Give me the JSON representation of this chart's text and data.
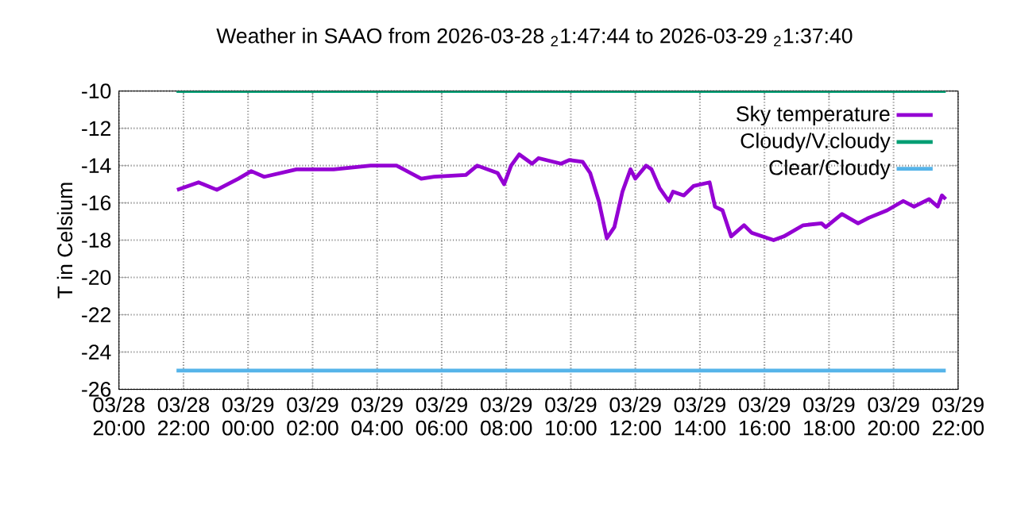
{
  "chart_data": {
    "type": "line",
    "title": "Weather in SAAO from 2026-03-28 $_{2}$1:47:44 to 2026-03-29 $_{2}$1:37:40",
    "ylabel": "T in Celsium",
    "xlim": [
      "2026-03-28T20:00",
      "2026-03-29T22:00"
    ],
    "xticks": [
      {
        "value": "2026-03-28T20:00",
        "label": "03/28 20:00"
      },
      {
        "value": "2026-03-28T22:00",
        "label": "03/28 22:00"
      },
      {
        "value": "2026-03-29T00:00",
        "label": "03/29 00:00"
      },
      {
        "value": "2026-03-29T02:00",
        "label": "03/29 02:00"
      },
      {
        "value": "2026-03-29T04:00",
        "label": "03/29 04:00"
      },
      {
        "value": "2026-03-29T06:00",
        "label": "03/29 06:00"
      },
      {
        "value": "2026-03-29T08:00",
        "label": "03/29 08:00"
      },
      {
        "value": "2026-03-29T10:00",
        "label": "03/29 10:00"
      },
      {
        "value": "2026-03-29T12:00",
        "label": "03/29 12:00"
      },
      {
        "value": "2026-03-29T14:00",
        "label": "03/29 14:00"
      },
      {
        "value": "2026-03-29T16:00",
        "label": "03/29 16:00"
      },
      {
        "value": "2026-03-29T18:00",
        "label": "03/29 18:00"
      },
      {
        "value": "2026-03-29T20:00",
        "label": "03/29 20:00"
      },
      {
        "value": "2026-03-29T22:00",
        "label": "03/29 22:00"
      }
    ],
    "ylim": [
      -26,
      -10
    ],
    "yticks": [
      -26,
      -24,
      -22,
      -20,
      -18,
      -16,
      -14,
      -12,
      -10
    ],
    "grid": true,
    "legend": "top right",
    "marker": "none",
    "series": [
      {
        "name": "Sky temperature",
        "color": "#9400d3",
        "x": [
          "2026-03-28T21:48",
          "2026-03-28T22:28",
          "2026-03-28T23:02",
          "2026-03-28T23:42",
          "2026-03-29T00:06",
          "2026-03-29T00:30",
          "2026-03-29T01:30",
          "2026-03-29T02:39",
          "2026-03-29T03:48",
          "2026-03-29T04:36",
          "2026-03-29T05:22",
          "2026-03-29T05:46",
          "2026-03-29T06:45",
          "2026-03-29T07:06",
          "2026-03-29T07:44",
          "2026-03-29T07:56",
          "2026-03-29T08:09",
          "2026-03-29T08:24",
          "2026-03-29T08:48",
          "2026-03-29T09:00",
          "2026-03-29T09:42",
          "2026-03-29T09:57",
          "2026-03-29T10:22",
          "2026-03-29T10:36",
          "2026-03-29T10:52",
          "2026-03-29T11:07",
          "2026-03-29T11:21",
          "2026-03-29T11:36",
          "2026-03-29T11:51",
          "2026-03-29T12:00",
          "2026-03-29T12:20",
          "2026-03-29T12:30",
          "2026-03-29T12:45",
          "2026-03-29T13:02",
          "2026-03-29T13:10",
          "2026-03-29T13:30",
          "2026-03-29T13:48",
          "2026-03-29T14:18",
          "2026-03-29T14:28",
          "2026-03-29T14:42",
          "2026-03-29T14:58",
          "2026-03-29T15:22",
          "2026-03-29T15:36",
          "2026-03-29T16:17",
          "2026-03-29T16:36",
          "2026-03-29T17:12",
          "2026-03-29T17:46",
          "2026-03-29T17:54",
          "2026-03-29T18:24",
          "2026-03-29T18:54",
          "2026-03-29T19:14",
          "2026-03-29T19:48",
          "2026-03-29T20:18",
          "2026-03-29T20:38",
          "2026-03-29T21:06",
          "2026-03-29T21:22",
          "2026-03-29T21:30",
          "2026-03-29T21:37"
        ],
        "values": [
          -15.3,
          -14.9,
          -15.3,
          -14.7,
          -14.3,
          -14.6,
          -14.2,
          -14.2,
          -14.0,
          -14.0,
          -14.7,
          -14.6,
          -14.5,
          -14.0,
          -14.4,
          -15.0,
          -14.0,
          -13.4,
          -13.9,
          -13.6,
          -13.9,
          -13.7,
          -13.8,
          -14.4,
          -15.9,
          -17.9,
          -17.3,
          -15.4,
          -14.2,
          -14.7,
          -14.0,
          -14.2,
          -15.2,
          -15.9,
          -15.4,
          -15.6,
          -15.1,
          -14.9,
          -16.2,
          -16.4,
          -17.8,
          -17.2,
          -17.6,
          -18.0,
          -17.8,
          -17.2,
          -17.1,
          -17.3,
          -16.6,
          -17.1,
          -16.8,
          -16.4,
          -15.9,
          -16.2,
          -15.8,
          -16.2,
          -15.6,
          -15.8
        ]
      },
      {
        "name": "Cloudy/V.cloudy",
        "color": "#009e73",
        "x": [
          "2026-03-28T21:47",
          "2026-03-29T21:37"
        ],
        "values": [
          -10,
          -10
        ]
      },
      {
        "name": "Clear/Cloudy",
        "color": "#56b4e9",
        "x": [
          "2026-03-28T21:47",
          "2026-03-29T21:37"
        ],
        "values": [
          -25,
          -25
        ]
      }
    ]
  }
}
